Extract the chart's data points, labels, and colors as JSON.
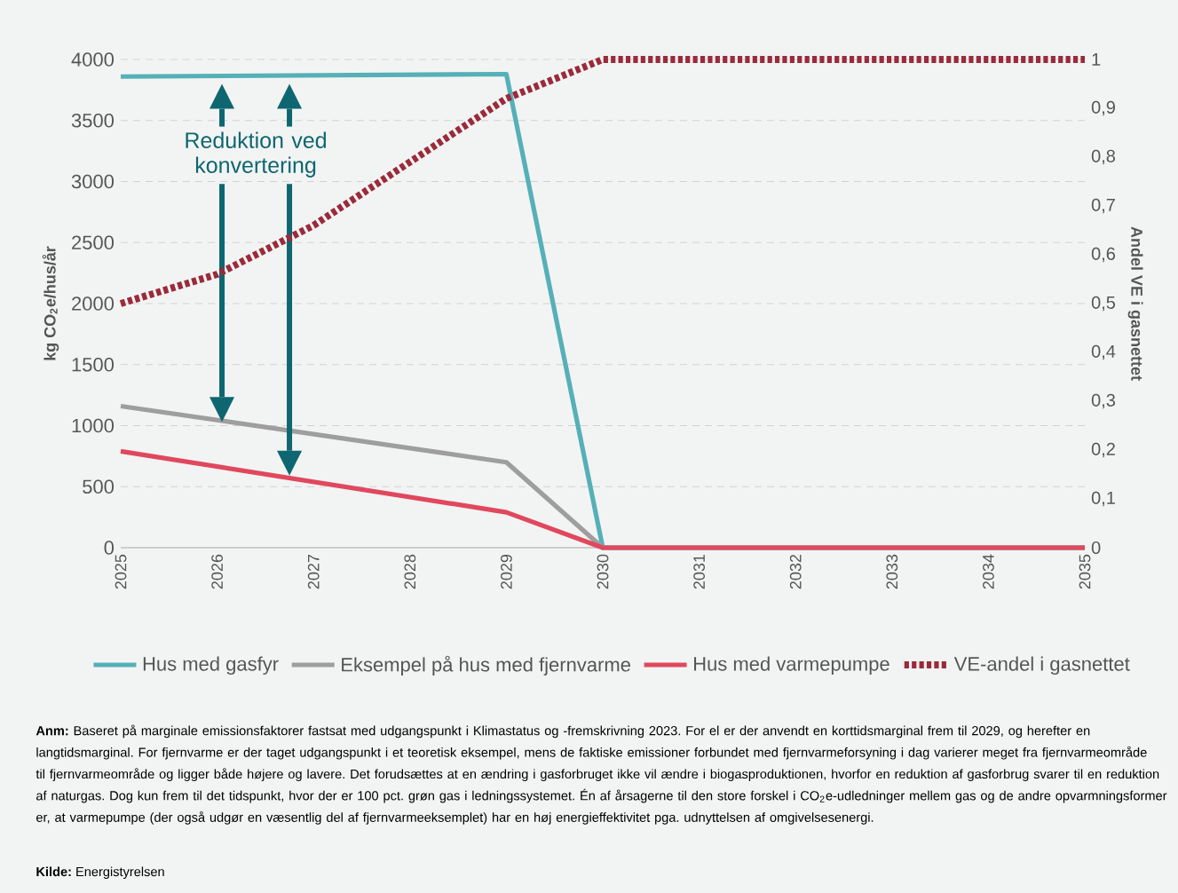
{
  "chart_data": {
    "type": "line",
    "xlim": [
      2025,
      2035
    ],
    "xticks": [
      2025,
      2026,
      2027,
      2028,
      2029,
      2030,
      2031,
      2032,
      2033,
      2034,
      2035
    ],
    "ylim": [
      0,
      4000
    ],
    "yticks": [
      0,
      500,
      1000,
      1500,
      2000,
      2500,
      3000,
      3500,
      4000
    ],
    "y2lim": [
      0,
      1
    ],
    "y2ticks": [
      0,
      {
        "value": 0.1,
        "label": "0,1"
      },
      {
        "value": 0.2,
        "label": "0,2"
      },
      {
        "value": 0.3,
        "label": "0,3"
      },
      {
        "value": 0.4,
        "label": "0,4"
      },
      {
        "value": 0.5,
        "label": "0,5"
      },
      {
        "value": 0.6,
        "label": "0,6"
      },
      {
        "value": 0.7,
        "label": "0,7"
      },
      {
        "value": 0.8,
        "label": "0,8"
      },
      {
        "value": 0.9,
        "label": "0,9"
      },
      1
    ],
    "ylabel": "**kg CO$_{2}$e/hus/år**",
    "y2label": "**Andel VE i gasnettet**",
    "grid": "y",
    "legend": "bottom",
    "series": [
      {
        "name": "Hus med gasfyr",
        "color": "#55b0b8",
        "line_style": "solid",
        "x": [
          2025,
          2029,
          2030,
          2035
        ],
        "values": [
          3860,
          3880,
          0,
          0
        ]
      },
      {
        "name": "Eksempel på hus med fjernvarme",
        "color": "#9e9e9e",
        "line_style": "solid",
        "x": [
          2025,
          2029,
          2030,
          2035
        ],
        "values": [
          1160,
          700,
          0,
          0
        ]
      },
      {
        "name": "Hus med varmepumpe",
        "color": "#e0485e",
        "line_style": "solid",
        "x": [
          2025,
          2029,
          2030,
          2035
        ],
        "values": [
          790,
          290,
          0,
          0
        ]
      },
      {
        "name": "VE-andel i gasnettet",
        "color": "#9b2a3a",
        "line_style": "dotted",
        "axis": "y2",
        "x": [
          2025,
          2026,
          2027,
          2028,
          2029,
          2030,
          2035
        ],
        "values": [
          0.5,
          0.56,
          0.66,
          0.79,
          0.92,
          1,
          1
        ]
      }
    ],
    "annotations": [
      "Reduktion ved konvertering",
      "**Anm:** Baseret på marginale emissionsfaktorer fastsat med udgangspunkt i Klimastatus og -fremskrivning 2023. For el er der anvendt en korttidsmarginal frem til 2029, og herefter en langtidsmarginal. For fjernvarme er der taget udgangspunkt i et teoretisk eksempel, mens de faktiske emissioner forbundet med fjernvarmeforsyning i dag varierer meget fra fjernvarmeområde til fjernvarmeområde og ligger både højere og lavere. Det forudsættes at en ændring i gasforbruget ikke vil ændre i biogasproduktionen, hvorfor en reduktion af gasforbrug svarer til en reduktion af naturgas. Dog kun frem til det tidspunkt, hvor der er 100 pct. grøn gas i ledningssystemet. Én af årsagerne til den store forskel i CO$_{2}$e-udledninger mellem gas og de andre opvarmningsformer er, at varmepumpe (der også udgør en væsentlig del af fjernvarmeeksemplet) har en høj energieffektivitet pga. udnyttelsen af omgivelsesenergi.",
      "**Kilde:** Energistyrelsen"
    ]
  }
}
